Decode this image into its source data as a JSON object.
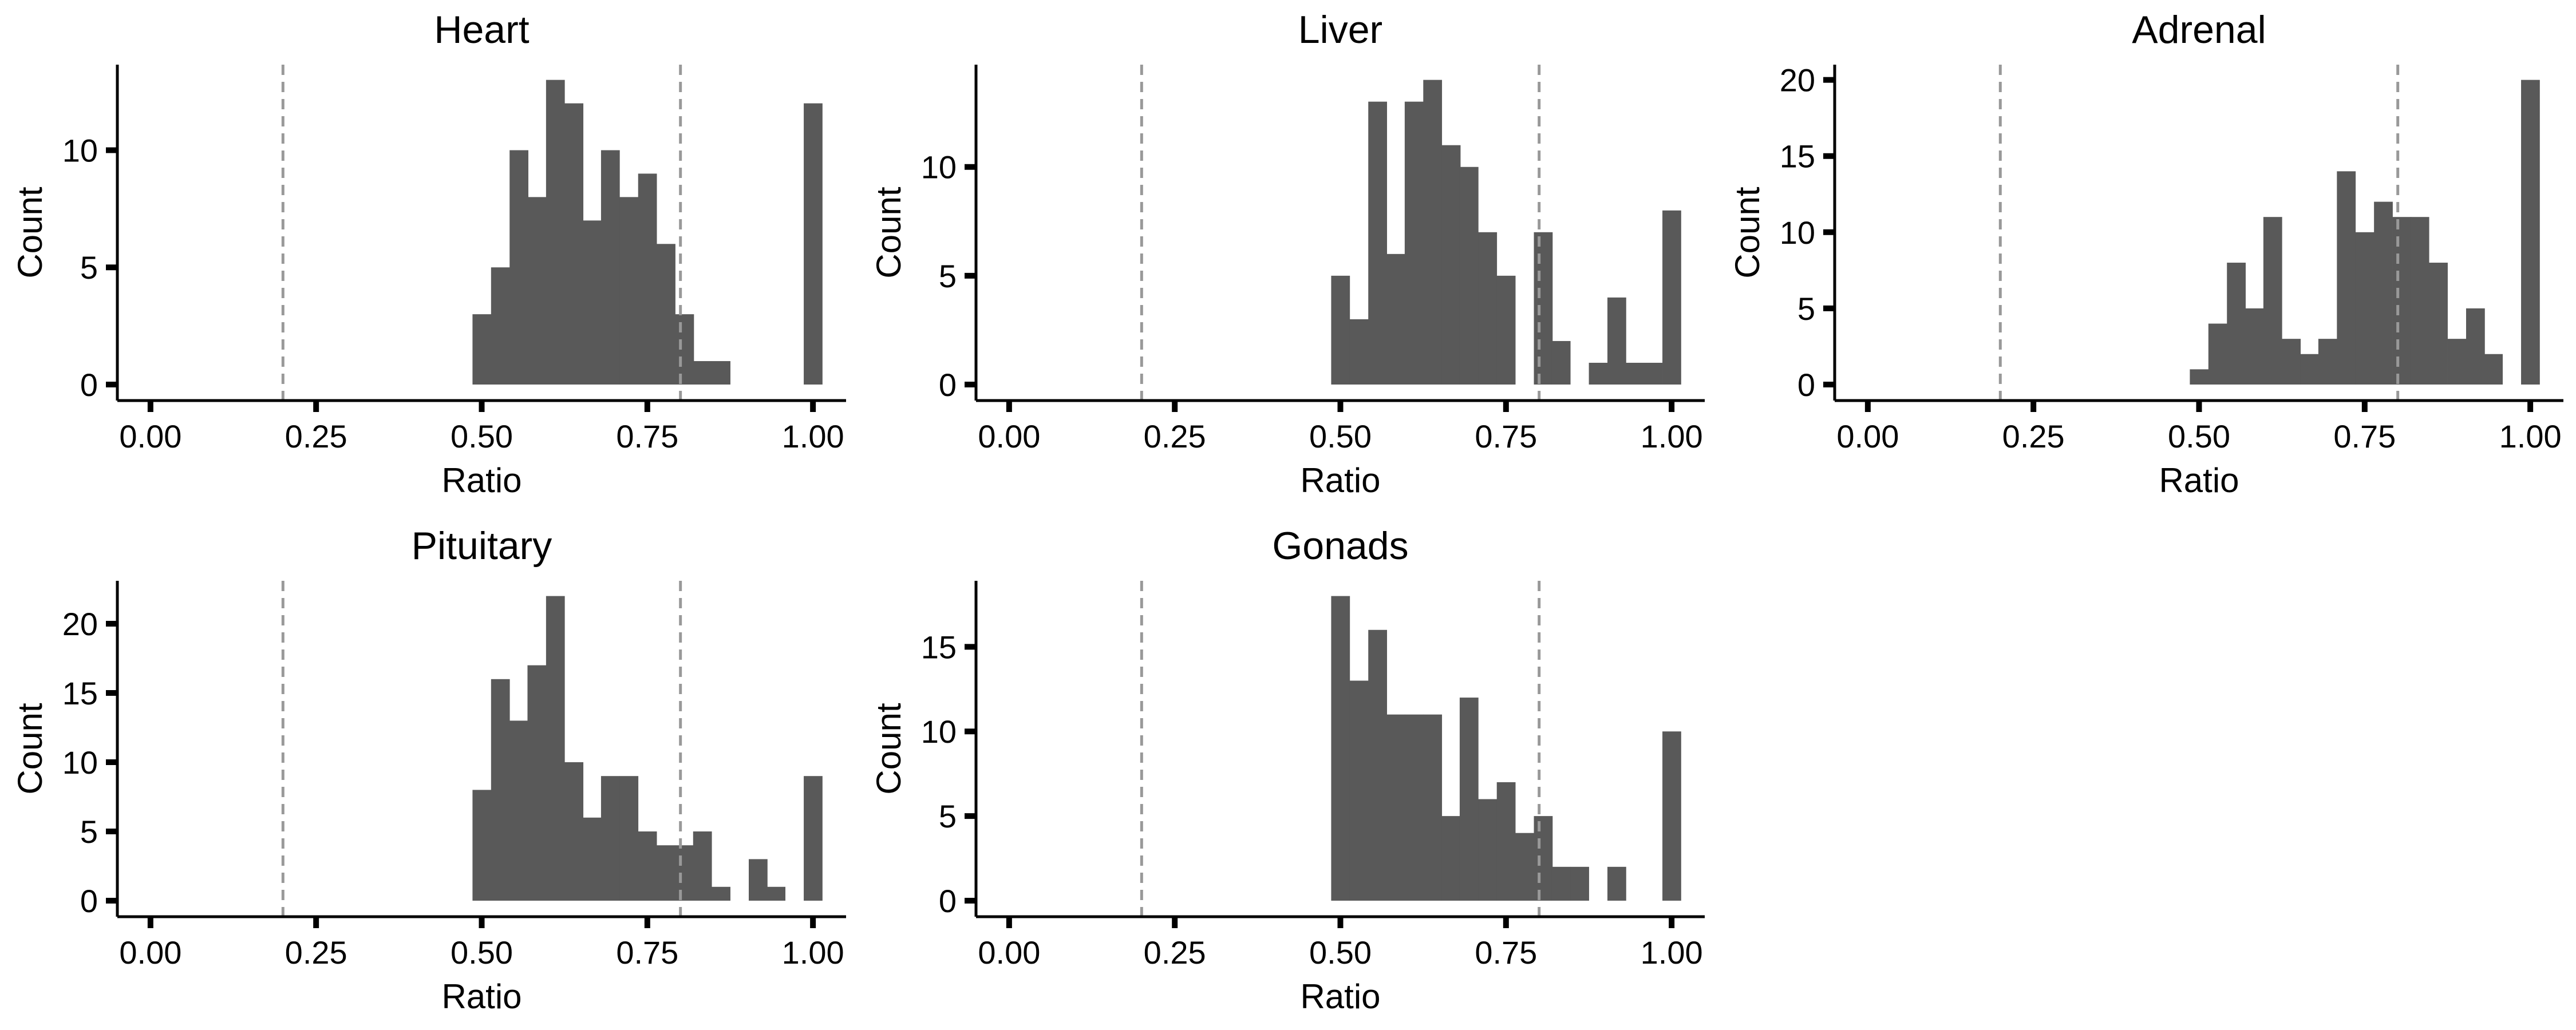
{
  "colors": {
    "bar": "#595959",
    "axis": "#000000",
    "refline": "#999999",
    "background": "#ffffff"
  },
  "chart_data": [
    {
      "type": "bar",
      "title": "Heart",
      "xlabel": "Ratio",
      "ylabel": "Count",
      "xlim": [
        -0.05,
        1.05
      ],
      "ylim": [
        0,
        13.65
      ],
      "x_ticks": [
        "0.00",
        "0.25",
        "0.50",
        "0.75",
        "1.00"
      ],
      "y_ticks": [
        "0",
        "5",
        "10"
      ],
      "reference_lines_x": [
        0.2,
        0.8
      ],
      "bin_width": 0.0278,
      "bin_centers": [
        0.5,
        0.528,
        0.556,
        0.583,
        0.611,
        0.639,
        0.667,
        0.694,
        0.722,
        0.75,
        0.778,
        0.806,
        0.833,
        0.861,
        0.889,
        0.917,
        0.944,
        0.972,
        1.0
      ],
      "counts": [
        3,
        5,
        10,
        8,
        13,
        12,
        7,
        10,
        8,
        9,
        6,
        3,
        1,
        1,
        0,
        0,
        0,
        0,
        12
      ]
    },
    {
      "type": "bar",
      "title": "Liver",
      "xlabel": "Ratio",
      "ylabel": "Count",
      "xlim": [
        -0.05,
        1.05
      ],
      "ylim": [
        0,
        14.7
      ],
      "x_ticks": [
        "0.00",
        "0.25",
        "0.50",
        "0.75",
        "1.00"
      ],
      "y_ticks": [
        "0",
        "5",
        "10"
      ],
      "reference_lines_x": [
        0.2,
        0.8
      ],
      "bin_width": 0.0278,
      "bin_centers": [
        0.5,
        0.528,
        0.556,
        0.583,
        0.611,
        0.639,
        0.667,
        0.694,
        0.722,
        0.75,
        0.778,
        0.806,
        0.833,
        0.861,
        0.889,
        0.917,
        0.944,
        0.972,
        1.0
      ],
      "counts": [
        5,
        3,
        13,
        6,
        13,
        14,
        11,
        10,
        7,
        5,
        0,
        7,
        2,
        0,
        1,
        4,
        1,
        1,
        8
      ]
    },
    {
      "type": "bar",
      "title": "Adrenal",
      "xlabel": "Ratio",
      "ylabel": "Count",
      "xlim": [
        -0.05,
        1.05
      ],
      "ylim": [
        0,
        21
      ],
      "x_ticks": [
        "0.00",
        "0.25",
        "0.50",
        "0.75",
        "1.00"
      ],
      "y_ticks": [
        "0",
        "5",
        "10",
        "15",
        "20"
      ],
      "reference_lines_x": [
        0.2,
        0.8
      ],
      "bin_width": 0.0278,
      "bin_centers": [
        0.5,
        0.528,
        0.556,
        0.583,
        0.611,
        0.639,
        0.667,
        0.694,
        0.722,
        0.75,
        0.778,
        0.806,
        0.833,
        0.861,
        0.889,
        0.917,
        0.944,
        0.972,
        1.0
      ],
      "counts": [
        1,
        4,
        8,
        5,
        11,
        3,
        2,
        3,
        14,
        10,
        12,
        11,
        11,
        8,
        3,
        5,
        2,
        0,
        20
      ]
    },
    {
      "type": "bar",
      "title": "Pituitary",
      "xlabel": "Ratio",
      "ylabel": "Count",
      "xlim": [
        -0.05,
        1.05
      ],
      "ylim": [
        0,
        23.1
      ],
      "x_ticks": [
        "0.00",
        "0.25",
        "0.50",
        "0.75",
        "1.00"
      ],
      "y_ticks": [
        "0",
        "5",
        "10",
        "15",
        "20"
      ],
      "reference_lines_x": [
        0.2,
        0.8
      ],
      "bin_width": 0.0278,
      "bin_centers": [
        0.5,
        0.528,
        0.556,
        0.583,
        0.611,
        0.639,
        0.667,
        0.694,
        0.722,
        0.75,
        0.778,
        0.806,
        0.833,
        0.861,
        0.889,
        0.917,
        0.944,
        0.972,
        1.0
      ],
      "counts": [
        8,
        16,
        13,
        17,
        22,
        10,
        6,
        9,
        9,
        5,
        4,
        4,
        5,
        1,
        0,
        3,
        1,
        0,
        9
      ]
    },
    {
      "type": "bar",
      "title": "Gonads",
      "xlabel": "Ratio",
      "ylabel": "Count",
      "xlim": [
        -0.05,
        1.05
      ],
      "ylim": [
        0,
        18.9
      ],
      "x_ticks": [
        "0.00",
        "0.25",
        "0.50",
        "0.75",
        "1.00"
      ],
      "y_ticks": [
        "0",
        "5",
        "10",
        "15"
      ],
      "reference_lines_x": [
        0.2,
        0.8
      ],
      "bin_width": 0.0278,
      "bin_centers": [
        0.5,
        0.528,
        0.556,
        0.583,
        0.611,
        0.639,
        0.667,
        0.694,
        0.722,
        0.75,
        0.778,
        0.806,
        0.833,
        0.861,
        0.889,
        0.917,
        0.944,
        0.972,
        1.0
      ],
      "counts": [
        18,
        13,
        16,
        11,
        11,
        11,
        5,
        12,
        6,
        7,
        4,
        5,
        2,
        2,
        0,
        2,
        0,
        0,
        10
      ]
    }
  ]
}
